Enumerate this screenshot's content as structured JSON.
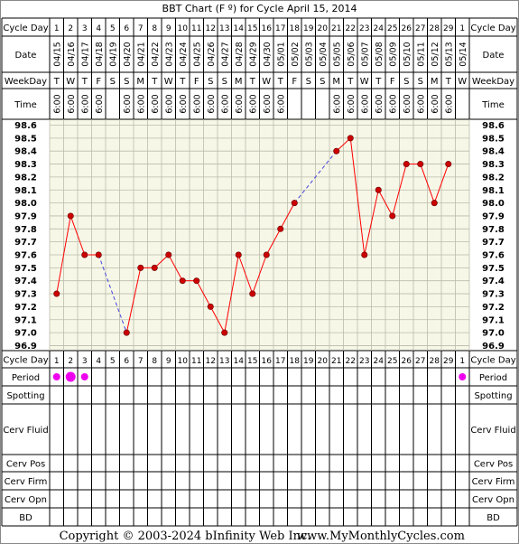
{
  "title": "BBT Chart (F º) for Cycle April 15, 2014",
  "row_labels": {
    "cycle_day": "Cycle Day",
    "date": "Date",
    "weekday": "WeekDay",
    "time": "Time",
    "period": "Period",
    "spotting": "Spotting",
    "cerv_fluid": "Cerv Fluid",
    "cerv_pos": "Cerv Pos",
    "cerv_firm": "Cerv Firm",
    "cerv_opn": "Cerv Opn",
    "bd": "BD"
  },
  "cycle_days": [
    "1",
    "2",
    "3",
    "4",
    "5",
    "6",
    "7",
    "8",
    "9",
    "10",
    "11",
    "12",
    "13",
    "14",
    "15",
    "16",
    "17",
    "18",
    "19",
    "20",
    "21",
    "22",
    "23",
    "24",
    "25",
    "26",
    "27",
    "28",
    "29",
    "1"
  ],
  "dates": [
    "04/15",
    "04/16",
    "04/17",
    "04/18",
    "04/19",
    "04/20",
    "04/21",
    "04/22",
    "04/23",
    "04/24",
    "04/25",
    "04/26",
    "04/27",
    "04/28",
    "04/29",
    "04/30",
    "05/01",
    "05/02",
    "05/03",
    "05/04",
    "05/05",
    "05/06",
    "05/07",
    "05/08",
    "05/09",
    "05/10",
    "05/11",
    "05/12",
    "05/13",
    "05/14"
  ],
  "weekdays": [
    "T",
    "W",
    "T",
    "F",
    "S",
    "S",
    "M",
    "T",
    "W",
    "T",
    "F",
    "S",
    "S",
    "M",
    "T",
    "W",
    "T",
    "F",
    "S",
    "S",
    "M",
    "T",
    "W",
    "T",
    "F",
    "S",
    "S",
    "M",
    "T",
    "W"
  ],
  "times": [
    "6:00",
    "6:00",
    "6:00",
    "6:00",
    "",
    "6:00",
    "6:00",
    "6:00",
    "6:00",
    "6:00",
    "6:00",
    "6:00",
    "6:00",
    "6:00",
    "6:00",
    "6:00",
    "6:00",
    "",
    "",
    "",
    "6:00",
    "6:00",
    "6:00",
    "6:00",
    "6:00",
    "6:00",
    "6:00",
    "6:00",
    "6:00",
    ""
  ],
  "y_ticks": [
    "98.6",
    "98.5",
    "98.4",
    "98.3",
    "98.2",
    "98.1",
    "98.0",
    "97.9",
    "97.8",
    "97.7",
    "97.6",
    "97.5",
    "97.4",
    "97.3",
    "97.2",
    "97.1",
    "97.0",
    "96.9"
  ],
  "chart_data": {
    "type": "line",
    "title": "BBT Chart (F º) for Cycle April 15, 2014",
    "xlabel": "Cycle Day",
    "ylabel": "",
    "ylim": [
      96.9,
      98.6
    ],
    "grid": true,
    "x": [
      1,
      2,
      3,
      4,
      5,
      6,
      7,
      8,
      9,
      10,
      11,
      12,
      13,
      14,
      15,
      16,
      17,
      18,
      19,
      20,
      21,
      22,
      23,
      24,
      25,
      26,
      27,
      28,
      29,
      30
    ],
    "series": [
      {
        "values": [
          97.3,
          97.9,
          97.6,
          97.6,
          null,
          97.0,
          97.5,
          97.5,
          97.6,
          97.4,
          97.4,
          97.2,
          97.0,
          97.6,
          97.3,
          97.6,
          97.8,
          98.0,
          null,
          null,
          98.4,
          98.5,
          97.6,
          98.1,
          97.9,
          98.3,
          98.3,
          98.0,
          98.3,
          null
        ]
      }
    ]
  },
  "period": [
    {
      "day_index": 0,
      "size": "medium"
    },
    {
      "day_index": 1,
      "size": "large"
    },
    {
      "day_index": 2,
      "size": "medium"
    },
    {
      "day_index": 29,
      "size": "medium"
    }
  ],
  "colors": {
    "grid_bg": "#f7f7e8",
    "line": "#ff0000",
    "point": "#cc0000",
    "gap_line": "#4444dd",
    "period": "#ee00ee",
    "label_bg": "#e8e8d8"
  },
  "footer": {
    "copyright": "Copyright © 2003-2024 bInfinity Web Inc.",
    "site": "www.MyMonthlyCycles.com"
  }
}
